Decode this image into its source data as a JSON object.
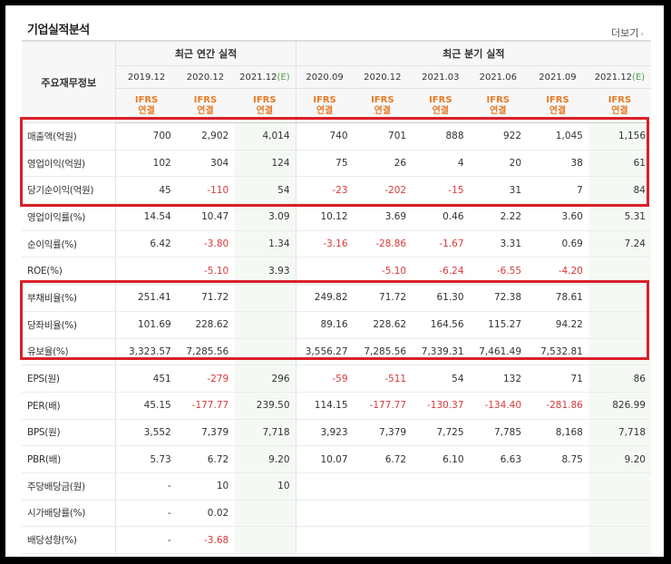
{
  "section_title": "기업실적분석",
  "more_link": "더보기",
  "more_arrow": "›",
  "header": {
    "row_label": "주요재무정보",
    "annual_group": "최근 연간 실적",
    "quarter_group": "최근 분기 실적",
    "periods": [
      "2019.12",
      "2020.12",
      "2021.12",
      "2020.09",
      "2020.12",
      "2021.03",
      "2021.06",
      "2021.09",
      "2021.12"
    ],
    "estimate_suffix": "(E)",
    "ifrs_top": "IFRS",
    "ifrs_bottom": "연결"
  },
  "rows": [
    {
      "label": "매출액(억원)",
      "values": [
        "700",
        "2,902",
        "4,014",
        "740",
        "701",
        "888",
        "922",
        "1,045",
        "1,156"
      ]
    },
    {
      "label": "영업이익(억원)",
      "values": [
        "102",
        "304",
        "124",
        "75",
        "26",
        "4",
        "20",
        "38",
        "61"
      ]
    },
    {
      "label": "당기순이익(억원)",
      "values": [
        "45",
        "-110",
        "54",
        "-23",
        "-202",
        "-15",
        "31",
        "7",
        "84"
      ]
    },
    {
      "label": "영업이익률(%)",
      "values": [
        "14.54",
        "10.47",
        "3.09",
        "10.12",
        "3.69",
        "0.46",
        "2.22",
        "3.60",
        "5.31"
      ]
    },
    {
      "label": "순이익률(%)",
      "values": [
        "6.42",
        "-3.80",
        "1.34",
        "-3.16",
        "-28.86",
        "-1.67",
        "3.31",
        "0.69",
        "7.24"
      ]
    },
    {
      "label": "ROE(%)",
      "values": [
        "",
        "-5.10",
        "3.93",
        "",
        "-5.10",
        "-6.24",
        "-6.55",
        "-4.20",
        ""
      ]
    },
    {
      "label": "부채비율(%)",
      "values": [
        "251.41",
        "71.72",
        "",
        "249.82",
        "71.72",
        "61.30",
        "72.38",
        "78.61",
        ""
      ]
    },
    {
      "label": "당좌비율(%)",
      "values": [
        "101.69",
        "228.62",
        "",
        "89.16",
        "228.62",
        "164.56",
        "115.27",
        "94.22",
        ""
      ]
    },
    {
      "label": "유보율(%)",
      "values": [
        "3,323.57",
        "7,285.56",
        "",
        "3,556.27",
        "7,285.56",
        "7,339.31",
        "7,461.49",
        "7,532.81",
        ""
      ]
    },
    {
      "label": "EPS(원)",
      "values": [
        "451",
        "-279",
        "296",
        "-59",
        "-511",
        "54",
        "132",
        "71",
        "86"
      ]
    },
    {
      "label": "PER(배)",
      "values": [
        "45.15",
        "-177.77",
        "239.50",
        "114.15",
        "-177.77",
        "-130.37",
        "-134.40",
        "-281.86",
        "826.99"
      ]
    },
    {
      "label": "BPS(원)",
      "values": [
        "3,552",
        "7,379",
        "7,718",
        "3,923",
        "7,379",
        "7,725",
        "7,785",
        "8,168",
        "7,718"
      ]
    },
    {
      "label": "PBR(배)",
      "values": [
        "5.73",
        "6.72",
        "9.20",
        "10.07",
        "6.72",
        "6.10",
        "6.63",
        "8.75",
        "9.20"
      ]
    },
    {
      "label": "주당배당금(원)",
      "values": [
        "-",
        "10",
        "10",
        "",
        "",
        "",
        "",
        "",
        ""
      ]
    },
    {
      "label": "시가배당률(%)",
      "values": [
        "-",
        "0.02",
        "",
        "",
        "",
        "",
        "",
        "",
        ""
      ]
    },
    {
      "label": "배당성향(%)",
      "values": [
        "-",
        "-3.68",
        "",
        "",
        "",
        "",
        "",
        "",
        ""
      ]
    }
  ],
  "colors": {
    "negative": "#d83a3a",
    "ifrs": "#e87b26",
    "highlight_box": "#d9202a",
    "estimate_bg": "#f4faf3"
  }
}
